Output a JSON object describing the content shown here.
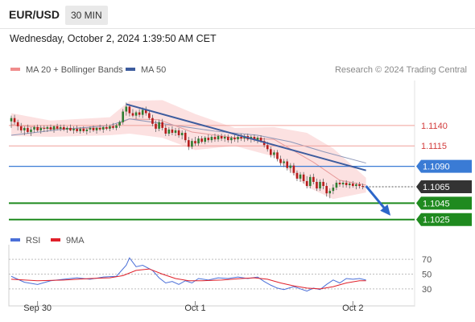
{
  "header": {
    "pair": "EUR/USD",
    "timeframe": "30 MIN",
    "timestamp": "Wednesday, October 2, 2024 1:39:50 AM CET"
  },
  "legend": {
    "bollinger": {
      "label": "MA 20 + Bollinger Bands",
      "color": "#f08c8c"
    },
    "ma50": {
      "label": "MA 50",
      "color": "#3d5c9e"
    }
  },
  "watermark": "Research © 2024 Trading Central",
  "chart_data": [
    {
      "type": "candlestick",
      "title": "",
      "ylim": [
        1.1006,
        1.1191
      ],
      "x_ticks": [
        {
          "label": "Sep 30",
          "index": 8
        },
        {
          "label": "Oct 1",
          "index": 56
        },
        {
          "label": "Oct 2",
          "index": 104
        }
      ],
      "candles": [
        [
          1.1145,
          1.1152,
          1.1137,
          1.1149
        ],
        [
          1.1149,
          1.1153,
          1.1141,
          1.1144
        ],
        [
          1.1144,
          1.1147,
          1.1134,
          1.1139
        ],
        [
          1.1139,
          1.1143,
          1.1131,
          1.1134
        ],
        [
          1.1134,
          1.1139,
          1.1128,
          1.1137
        ],
        [
          1.1137,
          1.1141,
          1.113,
          1.1132
        ],
        [
          1.1132,
          1.1138,
          1.1127,
          1.1135
        ],
        [
          1.1135,
          1.114,
          1.1131,
          1.1138
        ],
        [
          1.1138,
          1.1141,
          1.1132,
          1.1134
        ],
        [
          1.1134,
          1.114,
          1.113,
          1.1137
        ],
        [
          1.1137,
          1.114,
          1.1132,
          1.1136
        ],
        [
          1.1136,
          1.114,
          1.1132,
          1.1138
        ],
        [
          1.1138,
          1.1141,
          1.1133,
          1.1135
        ],
        [
          1.1135,
          1.114,
          1.1131,
          1.1139
        ],
        [
          1.1139,
          1.1142,
          1.1134,
          1.1136
        ],
        [
          1.1136,
          1.1141,
          1.1133,
          1.1138
        ],
        [
          1.1138,
          1.1141,
          1.1133,
          1.1135
        ],
        [
          1.1135,
          1.1139,
          1.1131,
          1.1137
        ],
        [
          1.1137,
          1.1141,
          1.1133,
          1.1134
        ],
        [
          1.1134,
          1.1139,
          1.113,
          1.1136
        ],
        [
          1.1136,
          1.114,
          1.1131,
          1.1133
        ],
        [
          1.1133,
          1.1138,
          1.113,
          1.1136
        ],
        [
          1.1136,
          1.1139,
          1.1131,
          1.1133
        ],
        [
          1.1133,
          1.1137,
          1.1129,
          1.1135
        ],
        [
          1.1135,
          1.1139,
          1.1131,
          1.1137
        ],
        [
          1.1137,
          1.114,
          1.1132,
          1.1134
        ],
        [
          1.1134,
          1.1138,
          1.113,
          1.1137
        ],
        [
          1.1137,
          1.1141,
          1.1133,
          1.1135
        ],
        [
          1.1135,
          1.1139,
          1.1131,
          1.1138
        ],
        [
          1.1138,
          1.1142,
          1.1134,
          1.1136
        ],
        [
          1.1136,
          1.1141,
          1.1133,
          1.1139
        ],
        [
          1.1139,
          1.1143,
          1.1135,
          1.1137
        ],
        [
          1.1137,
          1.1142,
          1.1134,
          1.114
        ],
        [
          1.114,
          1.1146,
          1.1137,
          1.1144
        ],
        [
          1.1144,
          1.116,
          1.1141,
          1.1157
        ],
        [
          1.1157,
          1.1168,
          1.1152,
          1.1163
        ],
        [
          1.1163,
          1.1166,
          1.1151,
          1.1155
        ],
        [
          1.1155,
          1.116,
          1.115,
          1.1152
        ],
        [
          1.1152,
          1.1158,
          1.1148,
          1.1156
        ],
        [
          1.1156,
          1.116,
          1.115,
          1.1153
        ],
        [
          1.1153,
          1.1162,
          1.1149,
          1.1159
        ],
        [
          1.1159,
          1.1163,
          1.1152,
          1.1155
        ],
        [
          1.1155,
          1.1159,
          1.1147,
          1.1149
        ],
        [
          1.1149,
          1.1153,
          1.1139,
          1.1142
        ],
        [
          1.1142,
          1.1146,
          1.1132,
          1.1136
        ],
        [
          1.1136,
          1.1147,
          1.1133,
          1.1144
        ],
        [
          1.1144,
          1.1148,
          1.1134,
          1.1137
        ],
        [
          1.1137,
          1.1141,
          1.1127,
          1.113
        ],
        [
          1.113,
          1.1138,
          1.1127,
          1.1135
        ],
        [
          1.1135,
          1.1139,
          1.1128,
          1.1131
        ],
        [
          1.1131,
          1.1137,
          1.1127,
          1.1134
        ],
        [
          1.1134,
          1.1137,
          1.1125,
          1.1128
        ],
        [
          1.1128,
          1.1134,
          1.1123,
          1.1131
        ],
        [
          1.1131,
          1.1134,
          1.1119,
          1.1122
        ],
        [
          1.1122,
          1.1126,
          1.111,
          1.1114
        ],
        [
          1.1114,
          1.1124,
          1.1111,
          1.1121
        ],
        [
          1.1121,
          1.1126,
          1.1115,
          1.1118
        ],
        [
          1.1118,
          1.1127,
          1.1115,
          1.1124
        ],
        [
          1.1124,
          1.1127,
          1.1118,
          1.112
        ],
        [
          1.112,
          1.1127,
          1.1117,
          1.1125
        ],
        [
          1.1125,
          1.1129,
          1.1119,
          1.1122
        ],
        [
          1.1122,
          1.1128,
          1.1119,
          1.1126
        ],
        [
          1.1126,
          1.113,
          1.112,
          1.1123
        ],
        [
          1.1123,
          1.1129,
          1.112,
          1.1127
        ],
        [
          1.1127,
          1.113,
          1.1121,
          1.1124
        ],
        [
          1.1124,
          1.1129,
          1.112,
          1.1126
        ],
        [
          1.1126,
          1.1129,
          1.1119,
          1.1122
        ],
        [
          1.1122,
          1.1127,
          1.1118,
          1.1125
        ],
        [
          1.1125,
          1.1129,
          1.112,
          1.1123
        ],
        [
          1.1123,
          1.1128,
          1.1119,
          1.1126
        ],
        [
          1.1126,
          1.113,
          1.1121,
          1.1124
        ],
        [
          1.1124,
          1.1129,
          1.112,
          1.1127
        ],
        [
          1.1127,
          1.113,
          1.1121,
          1.1123
        ],
        [
          1.1123,
          1.1128,
          1.1119,
          1.1126
        ],
        [
          1.1126,
          1.1129,
          1.112,
          1.1122
        ],
        [
          1.1122,
          1.1127,
          1.1118,
          1.1125
        ],
        [
          1.1125,
          1.1128,
          1.1119,
          1.1121
        ],
        [
          1.1121,
          1.1125,
          1.1113,
          1.1116
        ],
        [
          1.1116,
          1.112,
          1.1108,
          1.1111
        ],
        [
          1.1111,
          1.1114,
          1.1101,
          1.1104
        ],
        [
          1.1104,
          1.111,
          1.11,
          1.1107
        ],
        [
          1.1107,
          1.111,
          1.1096,
          1.1099
        ],
        [
          1.1099,
          1.1103,
          1.1091,
          1.1094
        ],
        [
          1.1094,
          1.1099,
          1.1089,
          1.1096
        ],
        [
          1.1096,
          1.1099,
          1.1085,
          1.1088
        ],
        [
          1.1088,
          1.1094,
          1.1082,
          1.1091
        ],
        [
          1.1091,
          1.1094,
          1.1079,
          1.1082
        ],
        [
          1.1082,
          1.1085,
          1.1072,
          1.1075
        ],
        [
          1.1075,
          1.1083,
          1.1071,
          1.108
        ],
        [
          1.108,
          1.1083,
          1.1069,
          1.1072
        ],
        [
          1.1072,
          1.1078,
          1.1063,
          1.1066
        ],
        [
          1.1066,
          1.108,
          1.1063,
          1.1077
        ],
        [
          1.1077,
          1.1081,
          1.1068,
          1.1071
        ],
        [
          1.1071,
          1.1075,
          1.106,
          1.1063
        ],
        [
          1.1063,
          1.1074,
          1.106,
          1.1071
        ],
        [
          1.1071,
          1.1075,
          1.1062,
          1.1066
        ],
        [
          1.1066,
          1.107,
          1.1053,
          1.1057
        ],
        [
          1.1057,
          1.1063,
          1.1051,
          1.106
        ],
        [
          1.106,
          1.1068,
          1.1056,
          1.1064
        ],
        [
          1.1064,
          1.1073,
          1.1061,
          1.107
        ],
        [
          1.107,
          1.1073,
          1.1065,
          1.1068
        ],
        [
          1.1068,
          1.1072,
          1.1064,
          1.107
        ],
        [
          1.107,
          1.1073,
          1.1064,
          1.1067
        ],
        [
          1.1067,
          1.1071,
          1.1063,
          1.1069
        ],
        [
          1.1069,
          1.1072,
          1.1064,
          1.1066
        ],
        [
          1.1066,
          1.107,
          1.1062,
          1.1068
        ],
        [
          1.1068,
          1.1071,
          1.1063,
          1.1066
        ],
        [
          1.1066,
          1.1069,
          1.1062,
          1.1065
        ]
      ],
      "ma50": [
        [
          0,
          1.1128
        ],
        [
          15,
          1.1135
        ],
        [
          30,
          1.114
        ],
        [
          36,
          1.1148
        ],
        [
          50,
          1.114
        ],
        [
          62,
          1.1133
        ],
        [
          75,
          1.1128
        ],
        [
          85,
          1.112
        ],
        [
          95,
          1.1108
        ],
        [
          108,
          1.1094
        ]
      ],
      "bb_mid": [
        [
          0,
          1.1141
        ],
        [
          12,
          1.1136
        ],
        [
          30,
          1.1137
        ],
        [
          36,
          1.1148
        ],
        [
          45,
          1.1147
        ],
        [
          55,
          1.1132
        ],
        [
          68,
          1.1125
        ],
        [
          80,
          1.1123
        ],
        [
          92,
          1.1095
        ],
        [
          100,
          1.1073
        ],
        [
          108,
          1.1067
        ]
      ],
      "bb_upper": [
        [
          0,
          1.1155
        ],
        [
          12,
          1.1146
        ],
        [
          30,
          1.115
        ],
        [
          36,
          1.117
        ],
        [
          46,
          1.1171
        ],
        [
          56,
          1.1154
        ],
        [
          68,
          1.1137
        ],
        [
          80,
          1.1138
        ],
        [
          90,
          1.1131
        ],
        [
          98,
          1.1112
        ],
        [
          108,
          1.1076
        ]
      ],
      "bb_lower": [
        [
          0,
          1.1127
        ],
        [
          12,
          1.1126
        ],
        [
          30,
          1.1128
        ],
        [
          36,
          1.113
        ],
        [
          46,
          1.1125
        ],
        [
          56,
          1.111
        ],
        [
          68,
          1.1115
        ],
        [
          80,
          1.1102
        ],
        [
          90,
          1.1065
        ],
        [
          98,
          1.105
        ],
        [
          108,
          1.1058
        ]
      ],
      "trendline": [
        [
          35,
          1.1166
        ],
        [
          108,
          1.1085
        ]
      ],
      "forecast_arrow": [
        [
          108,
          1.1066
        ],
        [
          115,
          1.1032
        ]
      ],
      "levels": [
        {
          "price": 1.114,
          "label": "1.1140",
          "kind": "resistance",
          "color": "#f0a09a"
        },
        {
          "price": 1.1115,
          "label": "1.1115",
          "kind": "resistance",
          "color": "#f0a09a"
        },
        {
          "price": 1.109,
          "label": "1.1090",
          "kind": "pivot",
          "color": "#3a7bd5"
        },
        {
          "price": 1.1065,
          "label": "1.1065",
          "kind": "last",
          "color": "#333333"
        },
        {
          "price": 1.1045,
          "label": "1.1045",
          "kind": "support",
          "color": "#1f8a1f"
        },
        {
          "price": 1.1025,
          "label": "1.1025",
          "kind": "support",
          "color": "#1f8a1f"
        }
      ]
    },
    {
      "type": "line",
      "title": "",
      "ylim": [
        20,
        80
      ],
      "y_ticks": [
        70,
        50,
        30
      ],
      "series": [
        {
          "name": "RSI",
          "color": "#4a6fd8",
          "values": [
            [
              0,
              47
            ],
            [
              4,
              39
            ],
            [
              8,
              36
            ],
            [
              12,
              41
            ],
            [
              16,
              43
            ],
            [
              20,
              45
            ],
            [
              24,
              43
            ],
            [
              28,
              46
            ],
            [
              32,
              47
            ],
            [
              35,
              62
            ],
            [
              36,
              72
            ],
            [
              38,
              60
            ],
            [
              40,
              62
            ],
            [
              43,
              55
            ],
            [
              45,
              45
            ],
            [
              47,
              38
            ],
            [
              49,
              40
            ],
            [
              51,
              36
            ],
            [
              53,
              41
            ],
            [
              55,
              38
            ],
            [
              57,
              44
            ],
            [
              60,
              42
            ],
            [
              63,
              45
            ],
            [
              66,
              44
            ],
            [
              69,
              46
            ],
            [
              72,
              44
            ],
            [
              75,
              46
            ],
            [
              77,
              40
            ],
            [
              79,
              35
            ],
            [
              81,
              31
            ],
            [
              83,
              29
            ],
            [
              86,
              33
            ],
            [
              88,
              30
            ],
            [
              90,
              27
            ],
            [
              92,
              31
            ],
            [
              94,
              29
            ],
            [
              96,
              36
            ],
            [
              98,
              42
            ],
            [
              100,
              38
            ],
            [
              102,
              44
            ],
            [
              104,
              43
            ],
            [
              106,
              44
            ],
            [
              108,
              42
            ]
          ]
        },
        {
          "name": "9MA",
          "color": "#e0202a",
          "values": [
            [
              0,
              43
            ],
            [
              8,
              41
            ],
            [
              16,
              42
            ],
            [
              24,
              44
            ],
            [
              30,
              45
            ],
            [
              34,
              48
            ],
            [
              38,
              55
            ],
            [
              42,
              57
            ],
            [
              46,
              50
            ],
            [
              50,
              44
            ],
            [
              54,
              41
            ],
            [
              58,
              41
            ],
            [
              64,
              42
            ],
            [
              70,
              44
            ],
            [
              74,
              45
            ],
            [
              78,
              43
            ],
            [
              82,
              38
            ],
            [
              86,
              34
            ],
            [
              90,
              31
            ],
            [
              94,
              30
            ],
            [
              98,
              33
            ],
            [
              102,
              38
            ],
            [
              106,
              41
            ],
            [
              108,
              41
            ]
          ]
        }
      ]
    }
  ]
}
